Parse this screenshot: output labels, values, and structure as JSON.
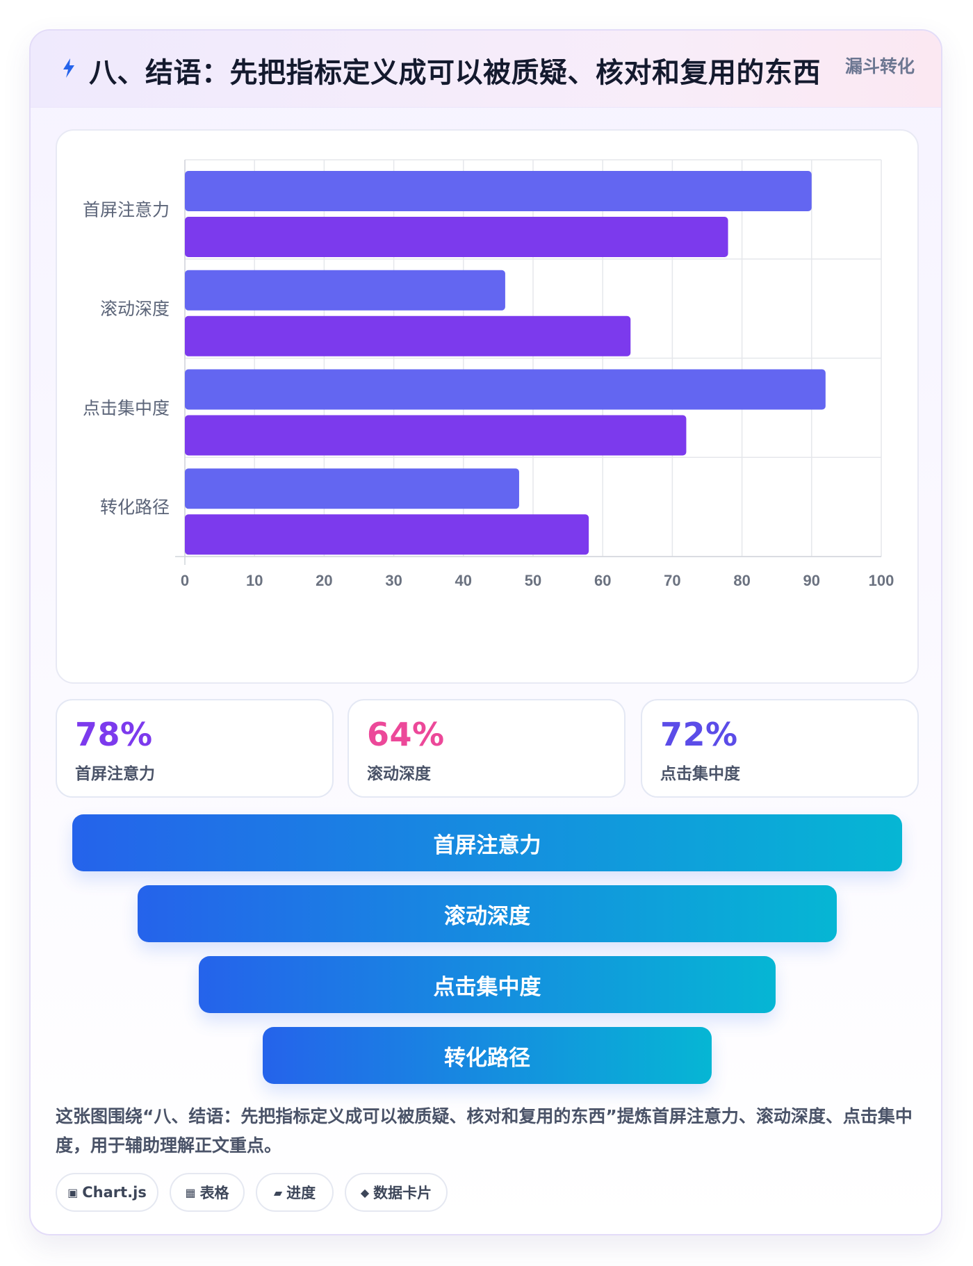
{
  "header": {
    "title": "八、结语：先把指标定义成可以被质疑、核对和复用的东西",
    "tag": "漏斗转化",
    "icon": "lightning-icon"
  },
  "chart_data": {
    "type": "bar",
    "orientation": "horizontal",
    "categories": [
      "首屏注意力",
      "滚动深度",
      "点击集中度",
      "转化路径"
    ],
    "series": [
      {
        "values": [
          90,
          46,
          92,
          48
        ],
        "color": "#6366f1"
      },
      {
        "values": [
          78,
          64,
          72,
          58
        ],
        "color": "#7c3aed"
      }
    ],
    "xlim": [
      0,
      100
    ],
    "xticks": [
      0,
      10,
      20,
      30,
      40,
      50,
      60,
      70,
      80,
      90,
      100
    ],
    "xlabel": "",
    "ylabel": "",
    "grid": true,
    "legend": "none"
  },
  "stats": [
    {
      "value": "78%",
      "label": "首屏注意力",
      "color": "#7c3aed"
    },
    {
      "value": "64%",
      "label": "滚动深度",
      "color": "#ec4899"
    },
    {
      "value": "72%",
      "label": "点击集中度",
      "color": "#5b4ce8"
    }
  ],
  "funnel": [
    "首屏注意力",
    "滚动深度",
    "点击集中度",
    "转化路径"
  ],
  "description": "这张图围绕“八、结语：先把指标定义成可以被质疑、核对和复用的东西”提炼首屏注意力、滚动深度、点击集中度，用于辅助理解正文重点。",
  "chips": [
    {
      "icon": "▣",
      "label": "Chart.js",
      "icon_name": "chart-icon"
    },
    {
      "icon": "▦",
      "label": "表格",
      "icon_name": "table-icon"
    },
    {
      "icon": "▰",
      "label": "进度",
      "icon_name": "progress-icon"
    },
    {
      "icon": "◆",
      "label": "数据卡片",
      "icon_name": "diamond-icon"
    }
  ]
}
